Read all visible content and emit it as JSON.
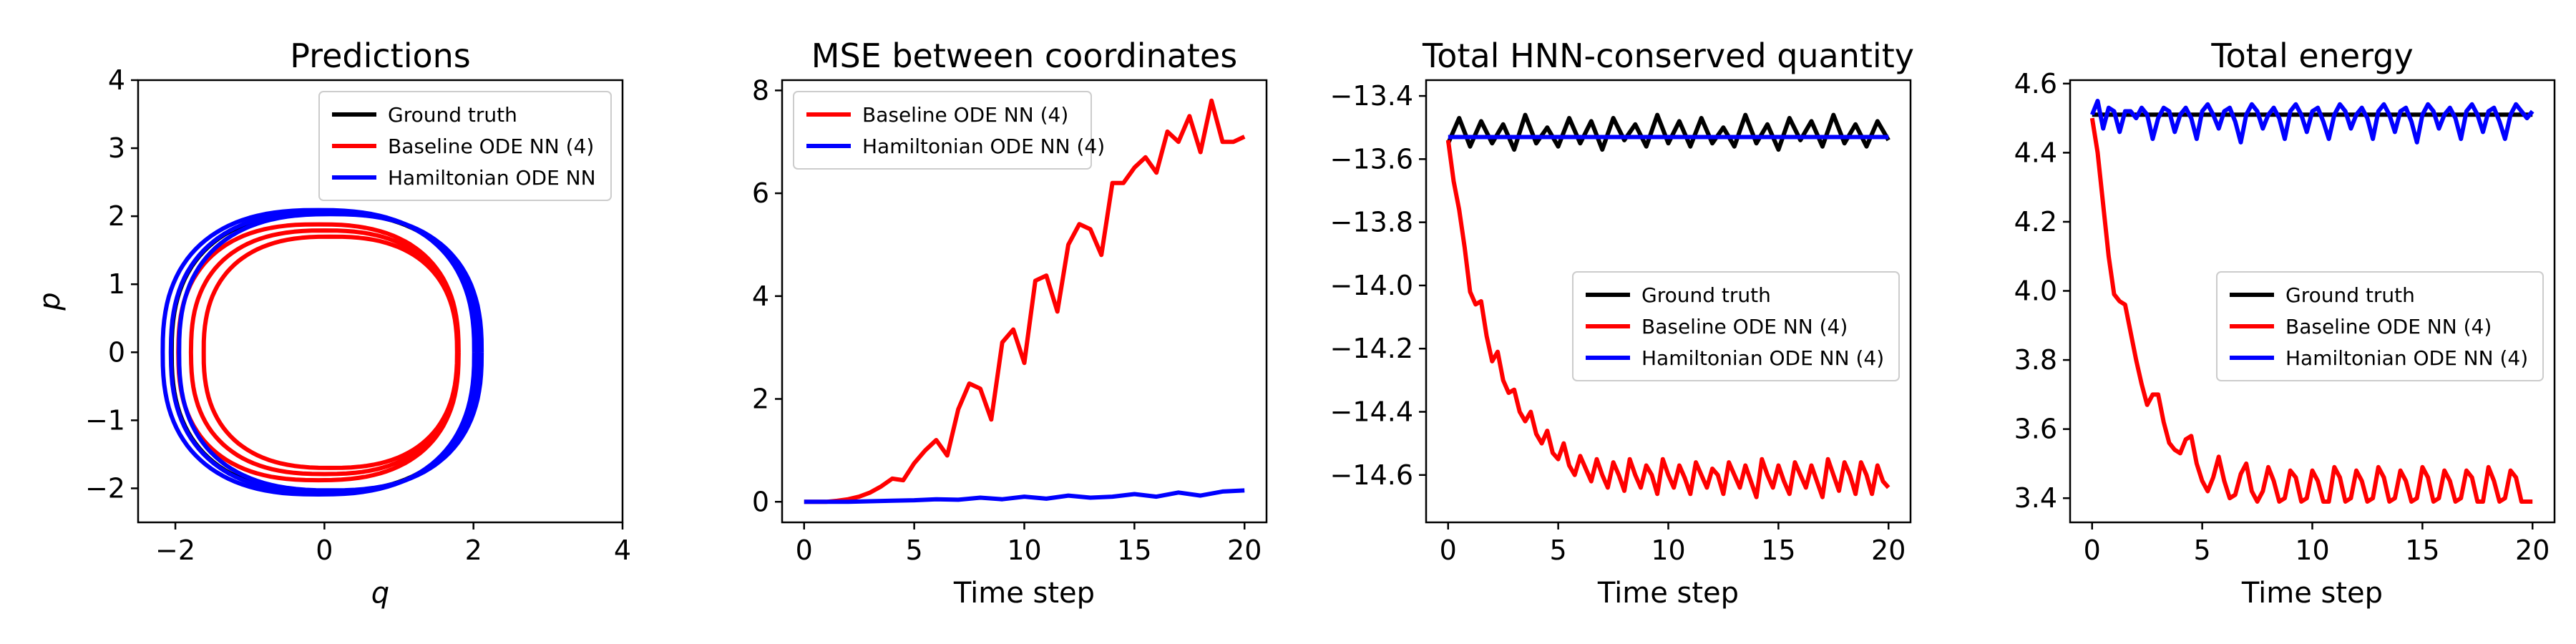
{
  "figure": {
    "background": "#ffffff"
  },
  "chart_data": [
    {
      "type": "line",
      "title": "Predictions",
      "xlabel": "q",
      "ylabel": "p",
      "xlim": [
        -2.5,
        4
      ],
      "ylim": [
        -2.5,
        4
      ],
      "xticks": [
        -2,
        0,
        2,
        4
      ],
      "yticks": [
        -2,
        -1,
        0,
        1,
        2,
        3,
        4
      ],
      "xtick_labels": [
        "−2",
        "0",
        "2",
        "4"
      ],
      "ytick_labels": [
        "−2",
        "−1",
        "0",
        "1",
        "2",
        "3",
        "4"
      ],
      "legend": {
        "position": "upper right",
        "entries": [
          "Ground truth",
          "Baseline ODE NN (4)",
          "Hamiltonian ODE NN"
        ]
      },
      "series": [
        {
          "name": "Ground truth",
          "color": "#000000",
          "shape": "orbit",
          "radius": 2.05,
          "width": 0
        },
        {
          "name": "Baseline ODE NN (4)",
          "color": "#ff0000",
          "shape": "orbit",
          "radius": 1.88,
          "width": 0.18
        },
        {
          "name": "Hamiltonian ODE NN",
          "color": "#0000ff",
          "shape": "orbit",
          "radius": 2.09,
          "width": 0.06
        }
      ]
    },
    {
      "type": "line",
      "title": "MSE between coordinates",
      "xlabel": "Time step",
      "ylabel": "",
      "xlim": [
        -1,
        21
      ],
      "ylim": [
        -0.4,
        8.2
      ],
      "xticks": [
        0,
        5,
        10,
        15,
        20
      ],
      "yticks": [
        0,
        2,
        4,
        6,
        8
      ],
      "xtick_labels": [
        "0",
        "5",
        "10",
        "15",
        "20"
      ],
      "ytick_labels": [
        "0",
        "2",
        "4",
        "6",
        "8"
      ],
      "legend": {
        "position": "upper left",
        "entries": [
          "Baseline ODE NN (4)",
          "Hamiltonian ODE NN (4)"
        ]
      },
      "series": [
        {
          "name": "Baseline ODE NN (4)",
          "color": "#ff0000",
          "x": [
            0,
            0.5,
            1,
            1.5,
            2,
            2.5,
            3,
            3.5,
            4,
            4.5,
            5,
            5.5,
            6,
            6.5,
            7,
            7.5,
            8,
            8.5,
            9,
            9.5,
            10,
            10.5,
            11,
            11.5,
            12,
            12.5,
            13,
            13.5,
            14,
            14.5,
            15,
            15.5,
            16,
            16.5,
            17,
            17.5,
            18,
            18.5,
            19,
            19.5,
            20
          ],
          "y": [
            0,
            0,
            0,
            0.02,
            0.05,
            0.1,
            0.18,
            0.3,
            0.45,
            0.42,
            0.75,
            1.0,
            1.2,
            0.9,
            1.8,
            2.3,
            2.2,
            1.6,
            3.1,
            3.35,
            2.7,
            4.3,
            4.4,
            3.7,
            5.0,
            5.4,
            5.3,
            4.8,
            6.2,
            6.2,
            6.5,
            6.7,
            6.4,
            7.2,
            7.0,
            7.5,
            6.8,
            7.8,
            7.0,
            7.0,
            7.1
          ]
        },
        {
          "name": "Hamiltonian ODE NN (4)",
          "color": "#0000ff",
          "x": [
            0,
            1,
            2,
            3,
            4,
            5,
            6,
            7,
            8,
            9,
            10,
            11,
            12,
            13,
            14,
            15,
            16,
            17,
            18,
            19,
            20
          ],
          "y": [
            0,
            0,
            0,
            0.01,
            0.02,
            0.03,
            0.05,
            0.04,
            0.08,
            0.05,
            0.1,
            0.06,
            0.12,
            0.08,
            0.1,
            0.15,
            0.1,
            0.18,
            0.12,
            0.2,
            0.22
          ]
        }
      ]
    },
    {
      "type": "line",
      "title": "Total HNN-conserved quantity",
      "xlabel": "Time step",
      "ylabel": "",
      "xlim": [
        -1,
        21
      ],
      "ylim": [
        -14.75,
        -13.35
      ],
      "xticks": [
        0,
        5,
        10,
        15,
        20
      ],
      "yticks": [
        -14.6,
        -14.4,
        -14.2,
        -14.0,
        -13.8,
        -13.6,
        -13.4
      ],
      "xtick_labels": [
        "0",
        "5",
        "10",
        "15",
        "20"
      ],
      "ytick_labels": [
        "−14.6",
        "−14.4",
        "−14.2",
        "−14.0",
        "−13.8",
        "−13.6",
        "−13.4"
      ],
      "legend": {
        "position": "center right",
        "entries": [
          "Ground truth",
          "Baseline ODE NN (4)",
          "Hamiltonian ODE NN (4)"
        ]
      },
      "series": [
        {
          "name": "Ground truth",
          "color": "#000000",
          "x": [
            0,
            0.5,
            1,
            1.5,
            2,
            2.5,
            3,
            3.5,
            4,
            4.5,
            5,
            5.5,
            6,
            6.5,
            7,
            7.5,
            8,
            8.5,
            9,
            9.5,
            10,
            10.5,
            11,
            11.5,
            12,
            12.5,
            13,
            13.5,
            14,
            14.5,
            15,
            15.5,
            16,
            16.5,
            17,
            17.5,
            18,
            18.5,
            19,
            19.5,
            20
          ],
          "y": [
            -13.55,
            -13.47,
            -13.56,
            -13.48,
            -13.55,
            -13.49,
            -13.57,
            -13.46,
            -13.55,
            -13.5,
            -13.56,
            -13.47,
            -13.55,
            -13.48,
            -13.57,
            -13.47,
            -13.54,
            -13.49,
            -13.56,
            -13.46,
            -13.55,
            -13.48,
            -13.56,
            -13.47,
            -13.55,
            -13.5,
            -13.56,
            -13.46,
            -13.55,
            -13.49,
            -13.57,
            -13.47,
            -13.54,
            -13.48,
            -13.56,
            -13.46,
            -13.55,
            -13.49,
            -13.56,
            -13.48,
            -13.54
          ]
        },
        {
          "name": "Baseline ODE NN (4)",
          "color": "#ff0000",
          "x": [
            0,
            0.25,
            0.5,
            0.75,
            1,
            1.25,
            1.5,
            1.75,
            2,
            2.25,
            2.5,
            2.75,
            3,
            3.25,
            3.5,
            3.75,
            4,
            4.25,
            4.5,
            4.75,
            5,
            5.25,
            5.5,
            5.75,
            6,
            6.25,
            6.5,
            6.75,
            7,
            7.25,
            7.5,
            7.75,
            8,
            8.25,
            8.5,
            8.75,
            9,
            9.25,
            9.5,
            9.75,
            10,
            10.25,
            10.5,
            10.75,
            11,
            11.25,
            11.5,
            11.75,
            12,
            12.25,
            12.5,
            12.75,
            13,
            13.25,
            13.5,
            13.75,
            14,
            14.25,
            14.5,
            14.75,
            15,
            15.25,
            15.5,
            15.75,
            16,
            16.25,
            16.5,
            16.75,
            17,
            17.25,
            17.5,
            17.75,
            18,
            18.25,
            18.5,
            18.75,
            19,
            19.25,
            19.5,
            19.75,
            20
          ],
          "y": [
            -13.54,
            -13.67,
            -13.76,
            -13.88,
            -14.02,
            -14.06,
            -14.05,
            -14.16,
            -14.24,
            -14.21,
            -14.3,
            -14.34,
            -14.33,
            -14.4,
            -14.43,
            -14.4,
            -14.47,
            -14.5,
            -14.46,
            -14.53,
            -14.55,
            -14.5,
            -14.57,
            -14.6,
            -14.54,
            -14.58,
            -14.62,
            -14.55,
            -14.6,
            -14.64,
            -14.56,
            -14.6,
            -14.65,
            -14.55,
            -14.6,
            -14.64,
            -14.57,
            -14.6,
            -14.66,
            -14.55,
            -14.6,
            -14.64,
            -14.57,
            -14.61,
            -14.66,
            -14.56,
            -14.6,
            -14.64,
            -14.58,
            -14.6,
            -14.66,
            -14.56,
            -14.6,
            -14.64,
            -14.57,
            -14.62,
            -14.67,
            -14.55,
            -14.6,
            -14.64,
            -14.57,
            -14.62,
            -14.66,
            -14.56,
            -14.6,
            -14.64,
            -14.57,
            -14.62,
            -14.67,
            -14.55,
            -14.6,
            -14.65,
            -14.56,
            -14.6,
            -14.66,
            -14.56,
            -14.6,
            -14.66,
            -14.57,
            -14.62,
            -14.64
          ]
        },
        {
          "name": "Hamiltonian ODE NN (4)",
          "color": "#0000ff",
          "x": [
            0,
            1,
            2,
            3,
            4,
            5,
            6,
            7,
            8,
            9,
            10,
            11,
            12,
            13,
            14,
            15,
            16,
            17,
            18,
            19,
            20
          ],
          "y": [
            -13.53,
            -13.53,
            -13.53,
            -13.53,
            -13.53,
            -13.53,
            -13.53,
            -13.53,
            -13.53,
            -13.53,
            -13.53,
            -13.53,
            -13.53,
            -13.53,
            -13.53,
            -13.53,
            -13.53,
            -13.53,
            -13.53,
            -13.53,
            -13.53
          ]
        }
      ]
    },
    {
      "type": "line",
      "title": "Total energy",
      "xlabel": "Time step",
      "ylabel": "",
      "xlim": [
        -1,
        21
      ],
      "ylim": [
        3.33,
        4.61
      ],
      "xticks": [
        0,
        5,
        10,
        15,
        20
      ],
      "yticks": [
        3.4,
        3.6,
        3.8,
        4.0,
        4.2,
        4.4,
        4.6
      ],
      "xtick_labels": [
        "0",
        "5",
        "10",
        "15",
        "20"
      ],
      "ytick_labels": [
        "3.4",
        "3.6",
        "3.8",
        "4.0",
        "4.2",
        "4.4",
        "4.6"
      ],
      "legend": {
        "position": "center right",
        "entries": [
          "Ground truth",
          "Baseline ODE NN (4)",
          "Hamiltonian ODE NN (4)"
        ]
      },
      "series": [
        {
          "name": "Ground truth",
          "color": "#000000",
          "x": [
            0,
            20
          ],
          "y": [
            4.51,
            4.51
          ]
        },
        {
          "name": "Baseline ODE NN (4)",
          "color": "#ff0000",
          "x": [
            0,
            0.25,
            0.5,
            0.75,
            1,
            1.25,
            1.5,
            1.75,
            2,
            2.25,
            2.5,
            2.75,
            3,
            3.25,
            3.5,
            3.75,
            4,
            4.25,
            4.5,
            4.75,
            5,
            5.25,
            5.5,
            5.75,
            6,
            6.25,
            6.5,
            6.75,
            7,
            7.25,
            7.5,
            7.75,
            8,
            8.25,
            8.5,
            8.75,
            9,
            9.25,
            9.5,
            9.75,
            10,
            10.25,
            10.5,
            10.75,
            11,
            11.25,
            11.5,
            11.75,
            12,
            12.25,
            12.5,
            12.75,
            13,
            13.25,
            13.5,
            13.75,
            14,
            14.25,
            14.5,
            14.75,
            15,
            15.25,
            15.5,
            15.75,
            16,
            16.25,
            16.5,
            16.75,
            17,
            17.25,
            17.5,
            17.75,
            18,
            18.25,
            18.5,
            18.75,
            19,
            19.25,
            19.5,
            19.75,
            20
          ],
          "y": [
            4.5,
            4.4,
            4.25,
            4.1,
            3.99,
            3.97,
            3.96,
            3.88,
            3.8,
            3.73,
            3.67,
            3.7,
            3.7,
            3.62,
            3.56,
            3.54,
            3.53,
            3.57,
            3.58,
            3.5,
            3.45,
            3.42,
            3.46,
            3.52,
            3.45,
            3.4,
            3.41,
            3.47,
            3.5,
            3.42,
            3.39,
            3.42,
            3.49,
            3.45,
            3.39,
            3.4,
            3.48,
            3.46,
            3.39,
            3.4,
            3.48,
            3.45,
            3.39,
            3.39,
            3.49,
            3.46,
            3.39,
            3.4,
            3.48,
            3.45,
            3.39,
            3.4,
            3.49,
            3.46,
            3.39,
            3.4,
            3.48,
            3.45,
            3.39,
            3.4,
            3.49,
            3.46,
            3.39,
            3.4,
            3.48,
            3.45,
            3.39,
            3.4,
            3.48,
            3.46,
            3.39,
            3.39,
            3.49,
            3.45,
            3.39,
            3.4,
            3.48,
            3.46,
            3.39,
            3.39,
            3.39
          ]
        },
        {
          "name": "Hamiltonian ODE NN (4)",
          "color": "#0000ff",
          "x": [
            0,
            0.25,
            0.5,
            0.75,
            1,
            1.25,
            1.5,
            1.75,
            2,
            2.25,
            2.5,
            2.75,
            3,
            3.25,
            3.5,
            3.75,
            4,
            4.25,
            4.5,
            4.75,
            5,
            5.25,
            5.5,
            5.75,
            6,
            6.25,
            6.5,
            6.75,
            7,
            7.25,
            7.5,
            7.75,
            8,
            8.25,
            8.5,
            8.75,
            9,
            9.25,
            9.5,
            9.75,
            10,
            10.25,
            10.5,
            10.75,
            11,
            11.25,
            11.5,
            11.75,
            12,
            12.25,
            12.5,
            12.75,
            13,
            13.25,
            13.5,
            13.75,
            14,
            14.25,
            14.5,
            14.75,
            15,
            15.25,
            15.5,
            15.75,
            16,
            16.25,
            16.5,
            16.75,
            17,
            17.25,
            17.5,
            17.75,
            18,
            18.25,
            18.5,
            18.75,
            19,
            19.25,
            19.5,
            19.75,
            20
          ],
          "y": [
            4.51,
            4.55,
            4.47,
            4.53,
            4.52,
            4.46,
            4.52,
            4.52,
            4.5,
            4.53,
            4.51,
            4.44,
            4.5,
            4.53,
            4.52,
            4.46,
            4.51,
            4.53,
            4.5,
            4.44,
            4.52,
            4.54,
            4.51,
            4.47,
            4.52,
            4.53,
            4.49,
            4.43,
            4.51,
            4.54,
            4.52,
            4.47,
            4.51,
            4.53,
            4.5,
            4.44,
            4.52,
            4.54,
            4.51,
            4.46,
            4.52,
            4.53,
            4.49,
            4.44,
            4.51,
            4.54,
            4.52,
            4.47,
            4.51,
            4.53,
            4.5,
            4.44,
            4.52,
            4.54,
            4.51,
            4.46,
            4.52,
            4.53,
            4.49,
            4.43,
            4.51,
            4.54,
            4.52,
            4.47,
            4.51,
            4.53,
            4.5,
            4.44,
            4.52,
            4.54,
            4.51,
            4.46,
            4.52,
            4.53,
            4.49,
            4.44,
            4.51,
            4.54,
            4.52,
            4.5,
            4.52
          ]
        }
      ]
    }
  ]
}
